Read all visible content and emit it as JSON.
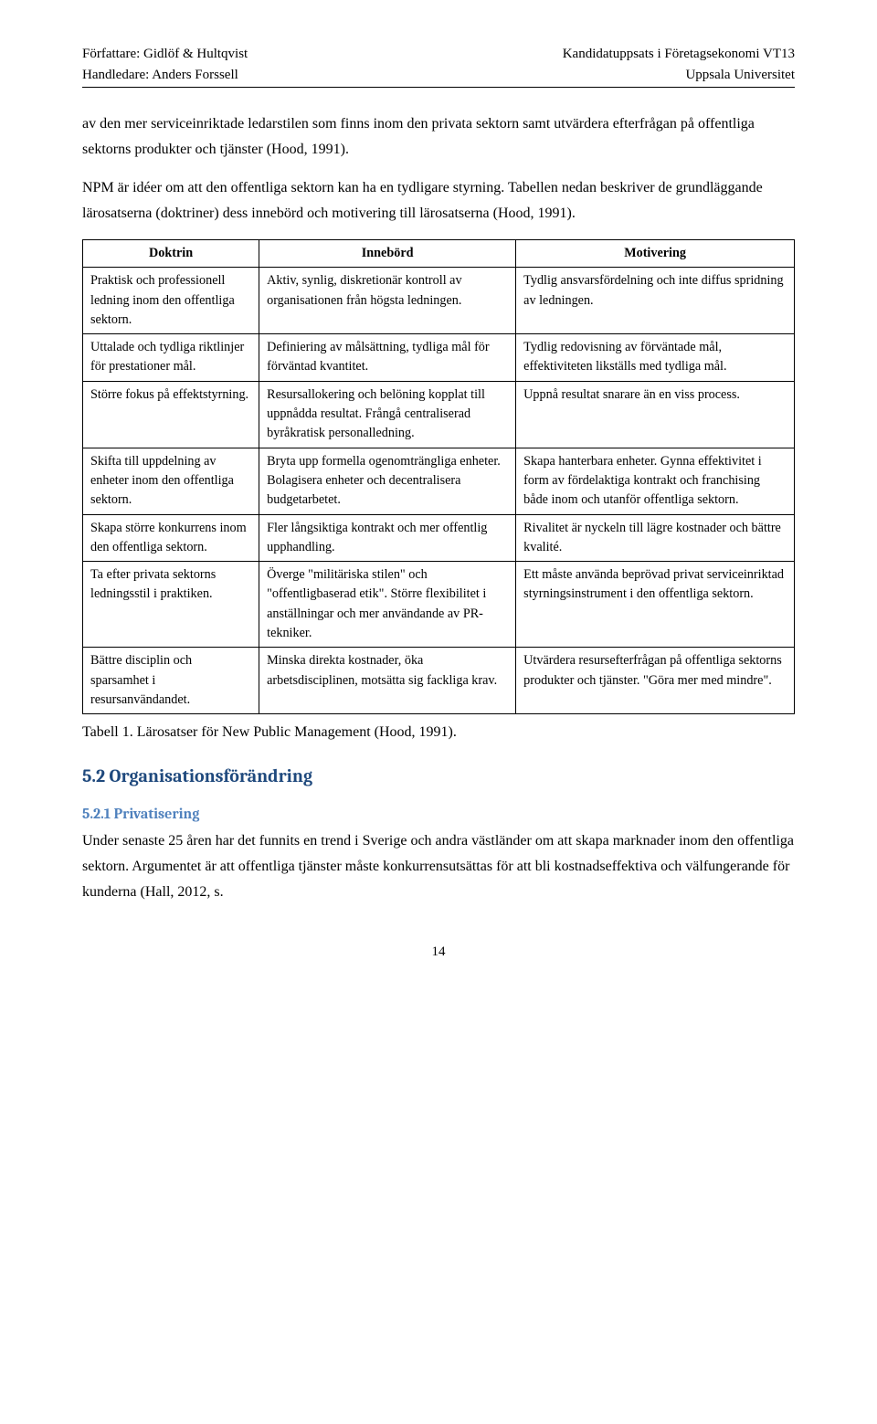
{
  "header": {
    "left_line1": "Författare: Gidlöf & Hultqvist",
    "left_line2": "Handledare: Anders Forssell",
    "right_line1": "Kandidatuppsats i Företagsekonomi VT13",
    "right_line2": "Uppsala Universitet"
  },
  "paragraphs": {
    "p1": "av den mer serviceinriktade ledarstilen som finns inom den privata sektorn samt utvärdera efterfrågan på offentliga sektorns produkter och tjänster (Hood, 1991).",
    "p2": "NPM är idéer om att den offentliga sektorn kan ha en tydligare styrning. Tabellen nedan beskriver de grundläggande lärosatserna (doktriner) dess innebörd och motivering till lärosatserna (Hood, 1991)."
  },
  "table": {
    "headers": [
      "Doktrin",
      "Innebörd",
      "Motivering"
    ],
    "rows": [
      {
        "c1": "Praktisk och professionell ledning inom den offentliga sektorn.",
        "c2": "Aktiv, synlig, diskretionär kontroll av organisationen från högsta ledningen.",
        "c3": "Tydlig ansvarsfördelning och inte diffus spridning av ledningen."
      },
      {
        "c1": "Uttalade och tydliga riktlinjer för prestationer mål.",
        "c2": "Definiering av målsättning, tydliga mål för förväntad kvantitet.",
        "c3": "Tydlig redovisning av förväntade mål, effektiviteten likställs med tydliga mål."
      },
      {
        "c1": "Större fokus på effektstyrning.",
        "c2": "Resursallokering och belöning kopplat till uppnådda resultat. Frångå centraliserad byråkratisk personalledning.",
        "c3": "Uppnå resultat snarare än en viss process."
      },
      {
        "c1": "Skifta till uppdelning av enheter inom den offentliga sektorn.",
        "c2": "Bryta upp formella ogenomträngliga enheter. Bolagisera enheter och decentralisera budgetarbetet.",
        "c3": "Skapa hanterbara enheter. Gynna effektivitet i form av fördelaktiga kontrakt och franchising både inom och utanför offentliga sektorn."
      },
      {
        "c1": "Skapa större konkurrens inom den offentliga sektorn.",
        "c2": "Fler långsiktiga kontrakt och mer offentlig upphandling.",
        "c3": "Rivalitet är nyckeln till lägre kostnader och bättre kvalité."
      },
      {
        "c1": "Ta efter privata sektorns ledningsstil i praktiken.",
        "c2": "Överge \"militäriska stilen\" och \"offentligbaserad etik\". Större flexibilitet i anställningar och mer användande av PR-tekniker.",
        "c3": "Ett måste använda beprövad privat serviceinriktad styrningsinstrument i den offentliga sektorn."
      },
      {
        "c1": "Bättre disciplin och sparsamhet i resursanvändandet.",
        "c2": "Minska direkta kostnader, öka arbetsdisciplinen, motsätta sig fackliga krav.",
        "c3": "Utvärdera resursefterfrågan på offentliga sektorns produkter och tjänster. \"Göra mer med mindre\"."
      }
    ]
  },
  "caption": "Tabell 1. Lärosatser för New Public Management (Hood, 1991).",
  "section_heading": "5.2 Organisationsförändring",
  "subsection_heading": "5.2.1 Privatisering",
  "body_after": "Under senaste 25 åren har det funnits en trend i Sverige och andra västländer om att skapa marknader inom den offentliga sektorn. Argumentet är att offentliga tjänster måste konkurrensutsättas för att bli kostnadseffektiva och välfungerande för kunderna (Hall, 2012, s.",
  "page_number": "14",
  "styles": {
    "heading_color": "#1f497d",
    "subheading_color": "#4f81bd",
    "text_color": "#000000",
    "background": "#ffffff",
    "body_font": "Times New Roman",
    "heading_font": "Cambria"
  }
}
